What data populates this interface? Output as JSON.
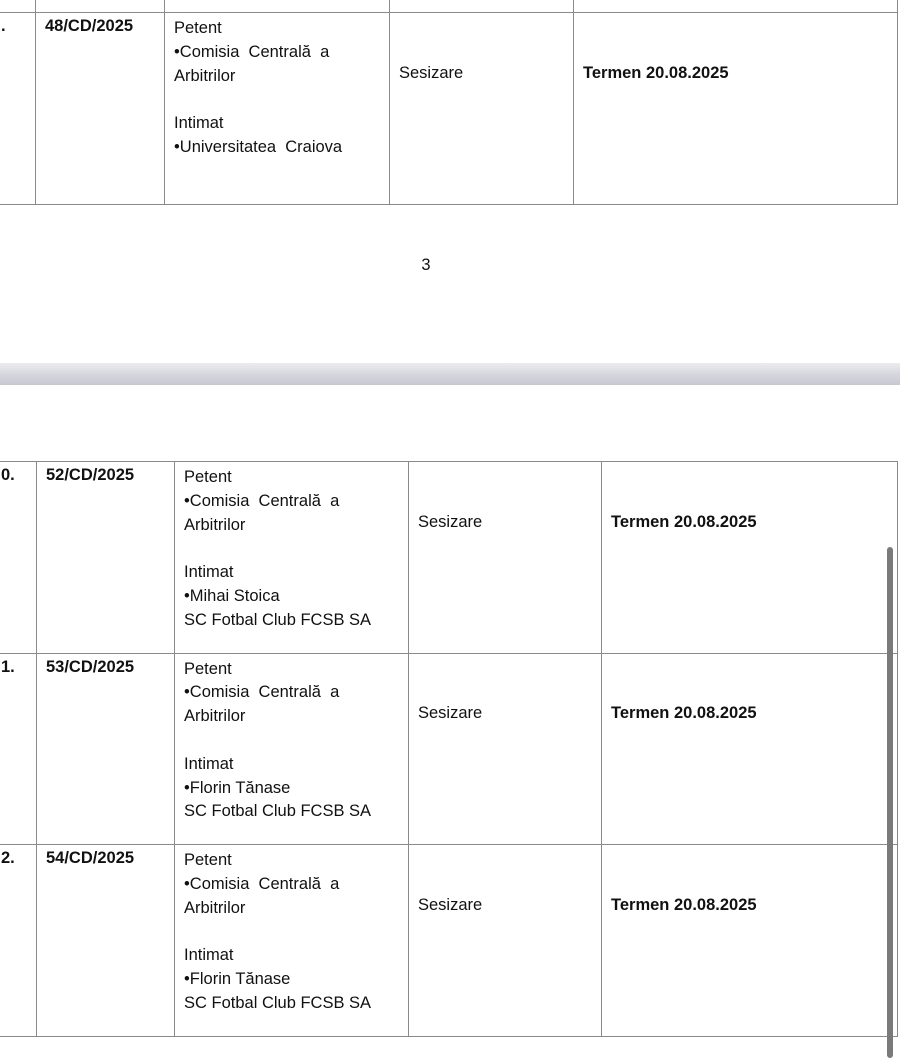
{
  "page_number": "3",
  "top_table": {
    "rows": [
      {
        "num": ".",
        "case": "48/CD/2025",
        "petent_label": "Petent",
        "petent": [
          "•Comisia  Centrală  a",
          "Arbitrilor"
        ],
        "intimat_label": "Intimat",
        "intimat": [
          "•Universitatea  Craiova"
        ],
        "type": "Sesizare",
        "deadline": "Termen 20.08.2025"
      }
    ]
  },
  "bottom_table": {
    "rows": [
      {
        "num": "0.",
        "case": "52/CD/2025",
        "petent_label": "Petent",
        "petent": [
          "•Comisia  Centrală  a",
          "Arbitrilor"
        ],
        "intimat_label": "Intimat",
        "intimat": [
          "•Mihai Stoica",
          "SC Fotbal Club FCSB SA"
        ],
        "type": "Sesizare",
        "deadline": "Termen 20.08.2025"
      },
      {
        "num": "1.",
        "case": "53/CD/2025",
        "petent_label": "Petent",
        "petent": [
          "•Comisia  Centrală  a",
          "Arbitrilor"
        ],
        "intimat_label": "Intimat",
        "intimat": [
          "•Florin Tănase",
          "SC Fotbal Club FCSB SA"
        ],
        "type": "Sesizare",
        "deadline": "Termen 20.08.2025"
      },
      {
        "num": "2.",
        "case": "54/CD/2025",
        "petent_label": "Petent",
        "petent": [
          "•Comisia  Centrală  a",
          "Arbitrilor"
        ],
        "intimat_label": "Intimat",
        "intimat": [
          "•Florin Tănase",
          "SC Fotbal Club FCSB SA"
        ],
        "type": "Sesizare",
        "deadline": "Termen 20.08.2025"
      }
    ]
  }
}
